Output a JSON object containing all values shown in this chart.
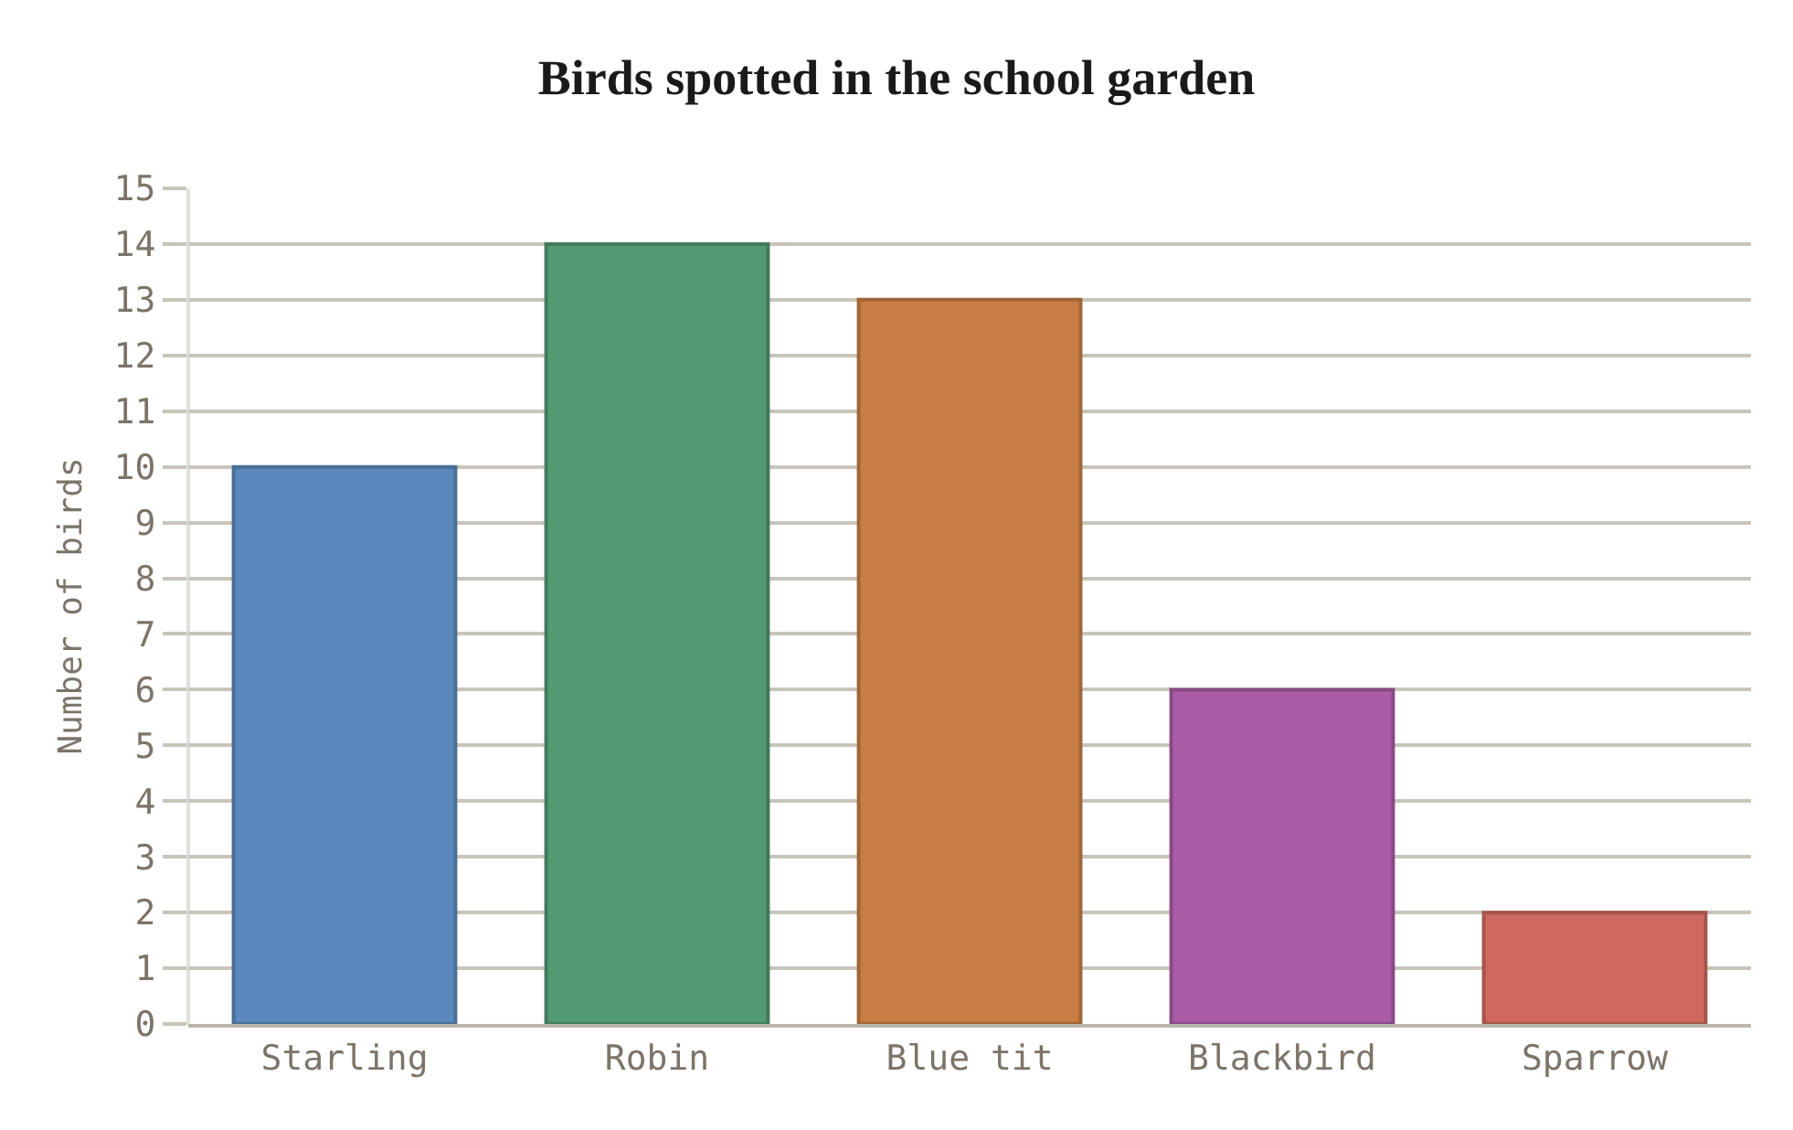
{
  "chart_data": {
    "type": "bar",
    "title": "Birds spotted in the school garden",
    "ylabel": "Number of birds",
    "categories": [
      "Starling",
      "Robin",
      "Blue tit",
      "Blackbird",
      "Sparrow"
    ],
    "values": [
      10,
      14,
      13,
      6,
      2
    ],
    "colors": [
      "#5b89be",
      "#529a73",
      "#c87d45",
      "#aa5ca6",
      "#d0695d"
    ],
    "ylim": [
      0,
      15
    ],
    "yticks": [
      0,
      1,
      2,
      3,
      4,
      5,
      6,
      7,
      8,
      9,
      10,
      11,
      12,
      13,
      14,
      15
    ],
    "grid": "y",
    "legend": false
  }
}
